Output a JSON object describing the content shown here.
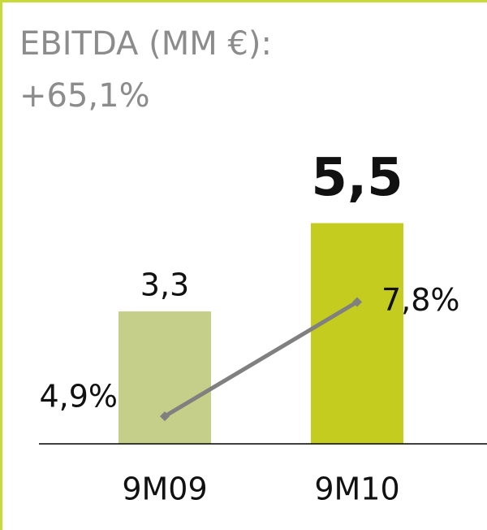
{
  "chart_data": {
    "type": "bar",
    "title": "EBITDA (MM €):",
    "subtitle": "+65,1%",
    "categories": [
      "9M09",
      "9M10"
    ],
    "series": [
      {
        "type": "bar",
        "colors": [
          "#c5cf8a",
          "#c3cc1f"
        ],
        "values": [
          3.3,
          5.5
        ],
        "value_labels": [
          "3,3",
          "5,5"
        ]
      },
      {
        "type": "line",
        "axis": "y2",
        "color": "#808080",
        "values": [
          4.9,
          7.8
        ],
        "value_labels": [
          "4,9%",
          "7,8%"
        ]
      }
    ],
    "ylim": [
      0,
      11
    ],
    "y2lim": [
      4.2,
      15.4
    ]
  }
}
